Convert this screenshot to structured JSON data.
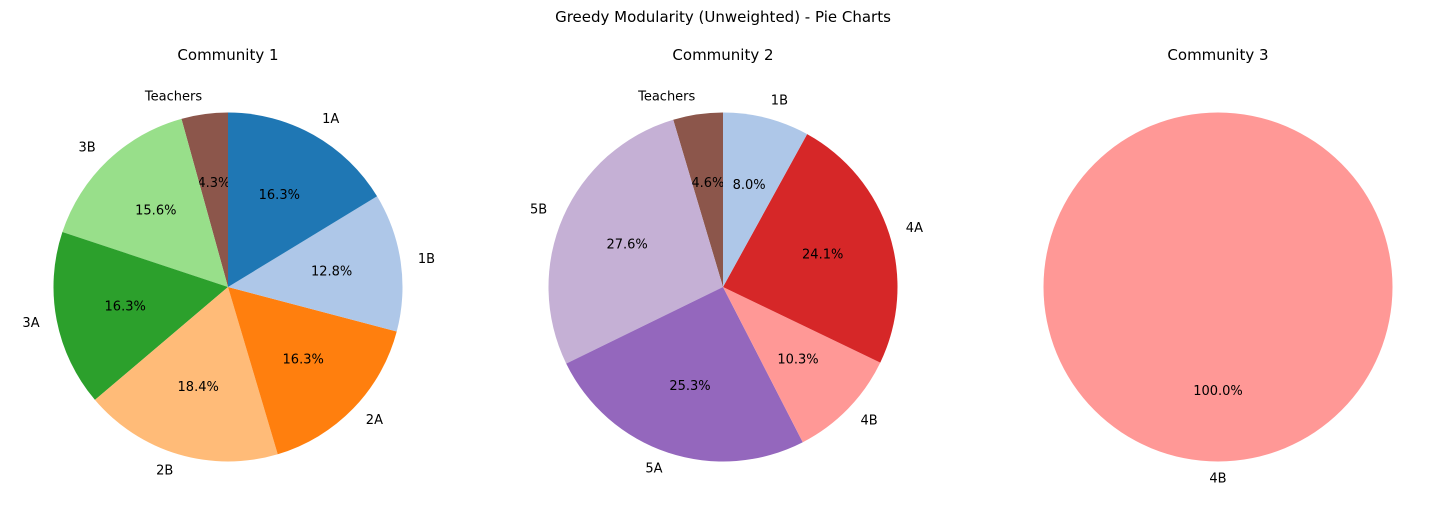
{
  "figure_title": "Greedy Modularity (Unweighted) - Pie Charts",
  "chart_data": [
    {
      "type": "pie",
      "title": "Community 1",
      "start_angle_deg": 90,
      "direction": "counterclockwise",
      "slices": [
        {
          "label": "Teachers",
          "pct_label": "4.3%",
          "value": 4.3,
          "color": "#8c564b"
        },
        {
          "label": "3B",
          "pct_label": "15.6%",
          "value": 15.6,
          "color": "#98df8a"
        },
        {
          "label": "3A",
          "pct_label": "16.3%",
          "value": 16.3,
          "color": "#2ca02c"
        },
        {
          "label": "2B",
          "pct_label": "18.4%",
          "value": 18.4,
          "color": "#ffbb78"
        },
        {
          "label": "2A",
          "pct_label": "16.3%",
          "value": 16.3,
          "color": "#ff7f0e"
        },
        {
          "label": "1B",
          "pct_label": "12.8%",
          "value": 12.8,
          "color": "#aec7e8"
        },
        {
          "label": "1A",
          "pct_label": "16.3%",
          "value": 16.3,
          "color": "#1f77b4"
        }
      ]
    },
    {
      "type": "pie",
      "title": "Community 2",
      "start_angle_deg": 90,
      "direction": "counterclockwise",
      "slices": [
        {
          "label": "Teachers",
          "pct_label": "4.6%",
          "value": 4.6,
          "color": "#8c564b"
        },
        {
          "label": "5B",
          "pct_label": "27.6%",
          "value": 27.6,
          "color": "#c5b0d5"
        },
        {
          "label": "5A",
          "pct_label": "25.3%",
          "value": 25.3,
          "color": "#9467bd"
        },
        {
          "label": "4B",
          "pct_label": "10.3%",
          "value": 10.3,
          "color": "#ff9896"
        },
        {
          "label": "4A",
          "pct_label": "24.1%",
          "value": 24.1,
          "color": "#d62728"
        },
        {
          "label": "1B",
          "pct_label": "8.0%",
          "value": 8.0,
          "color": "#aec7e8"
        }
      ]
    },
    {
      "type": "pie",
      "title": "Community 3",
      "start_angle_deg": 90,
      "direction": "counterclockwise",
      "slices": [
        {
          "label": "4B",
          "pct_label": "100.0%",
          "value": 100.0,
          "color": "#ff9896"
        }
      ]
    }
  ]
}
